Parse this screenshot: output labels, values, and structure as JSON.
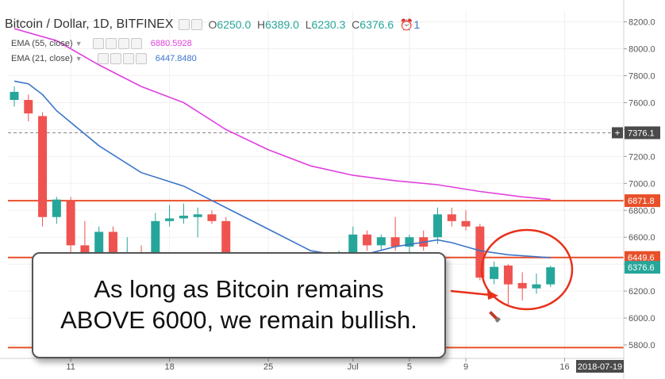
{
  "header": {
    "symbol": "Bitcoin / Dollar, 1D, BITFINEX",
    "o_label": "O",
    "o": "6250.0",
    "h_label": "H",
    "h": "6389.0",
    "l_label": "L",
    "l": "6230.3",
    "c_label": "C",
    "c": "6376.6",
    "alerts": "1"
  },
  "indicators": [
    {
      "label": "EMA (55, close)",
      "value": "6880.5928",
      "color": "#e040e0"
    },
    {
      "label": "EMA (21, close)",
      "value": "6447.8480",
      "color": "#3b74c9"
    }
  ],
  "callout": {
    "line1": "As long as Bitcoin remains",
    "line2": "ABOVE 6000, we remain bullish."
  },
  "colors": {
    "up": "#26a69a",
    "down": "#ef5350",
    "hline": "#e8502a",
    "annotation": "#e8301a"
  },
  "chart_data": {
    "type": "candlestick",
    "y_ticks": [
      5800,
      6000,
      6200,
      6400,
      6600,
      6800,
      7000,
      7200,
      7400,
      7600,
      7800,
      8000,
      8200
    ],
    "y_tick_labels": [
      "5800.0",
      "6000.0",
      "6200.0",
      "6400.0",
      "6600.0",
      "6800.0",
      "7000.0",
      "7200.0",
      "7400.0",
      "7600.0",
      "7800.0",
      "8000.0",
      "8200.0"
    ],
    "ylim": [
      5700,
      8280
    ],
    "x_ticks": [
      {
        "day": 11,
        "label": "11"
      },
      {
        "day": 18,
        "label": "18"
      },
      {
        "day": 25,
        "label": "25"
      },
      {
        "day": 31,
        "label": "Jul"
      },
      {
        "day": 35,
        "label": "5"
      },
      {
        "day": 39,
        "label": "9"
      },
      {
        "day": 46,
        "label": "16"
      }
    ],
    "cursor_date": "2018-07-19",
    "xlim": [
      7,
      48.5
    ],
    "candles": [
      {
        "d": 7,
        "o": 7620,
        "h": 7720,
        "l": 7570,
        "c": 7680
      },
      {
        "d": 8,
        "o": 7620,
        "h": 7660,
        "l": 7460,
        "c": 7520
      },
      {
        "d": 9,
        "o": 7500,
        "h": 7530,
        "l": 6680,
        "c": 6750
      },
      {
        "d": 10,
        "o": 6750,
        "h": 6900,
        "l": 6700,
        "c": 6880
      },
      {
        "d": 11,
        "o": 6870,
        "h": 6900,
        "l": 6490,
        "c": 6540
      },
      {
        "d": 12,
        "o": 6540,
        "h": 6720,
        "l": 6450,
        "c": 6480
      },
      {
        "d": 13,
        "o": 6480,
        "h": 6680,
        "l": 6450,
        "c": 6640
      },
      {
        "d": 14,
        "o": 6640,
        "h": 6680,
        "l": 6400,
        "c": 6420
      },
      {
        "d": 15,
        "o": 6420,
        "h": 6600,
        "l": 6400,
        "c": 6480
      },
      {
        "d": 16,
        "o": 6480,
        "h": 6540,
        "l": 6430,
        "c": 6450
      },
      {
        "d": 17,
        "o": 6460,
        "h": 6780,
        "l": 6430,
        "c": 6720
      },
      {
        "d": 18,
        "o": 6720,
        "h": 6840,
        "l": 6680,
        "c": 6740
      },
      {
        "d": 19,
        "o": 6740,
        "h": 6850,
        "l": 6700,
        "c": 6760
      },
      {
        "d": 20,
        "o": 6750,
        "h": 6820,
        "l": 6600,
        "c": 6770
      },
      {
        "d": 21,
        "o": 6770,
        "h": 6800,
        "l": 6700,
        "c": 6720
      },
      {
        "d": 22,
        "o": 6720,
        "h": 6750,
        "l": 6420,
        "c": 6420
      },
      {
        "d": 30,
        "o": 6420,
        "h": 6500,
        "l": 6400,
        "c": 6460
      },
      {
        "d": 31,
        "o": 6440,
        "h": 6680,
        "l": 6420,
        "c": 6620
      },
      {
        "d": 32,
        "o": 6620,
        "h": 6650,
        "l": 6500,
        "c": 6540
      },
      {
        "d": 33,
        "o": 6540,
        "h": 6620,
        "l": 6500,
        "c": 6600
      },
      {
        "d": 34,
        "o": 6600,
        "h": 6750,
        "l": 6500,
        "c": 6530
      },
      {
        "d": 35,
        "o": 6530,
        "h": 6620,
        "l": 6480,
        "c": 6600
      },
      {
        "d": 36,
        "o": 6600,
        "h": 6650,
        "l": 6500,
        "c": 6530
      },
      {
        "d": 37,
        "o": 6600,
        "h": 6820,
        "l": 6550,
        "c": 6770
      },
      {
        "d": 38,
        "o": 6770,
        "h": 6820,
        "l": 6680,
        "c": 6720
      },
      {
        "d": 39,
        "o": 6720,
        "h": 6800,
        "l": 6650,
        "c": 6680
      },
      {
        "d": 40,
        "o": 6680,
        "h": 6700,
        "l": 6280,
        "c": 6300
      },
      {
        "d": 41,
        "o": 6290,
        "h": 6420,
        "l": 6250,
        "c": 6380
      },
      {
        "d": 42,
        "o": 6390,
        "h": 6400,
        "l": 6100,
        "c": 6250
      },
      {
        "d": 43,
        "o": 6260,
        "h": 6340,
        "l": 6130,
        "c": 6220
      },
      {
        "d": 44,
        "o": 6220,
        "h": 6330,
        "l": 6180,
        "c": 6250
      },
      {
        "d": 45,
        "o": 6250,
        "h": 6389,
        "l": 6230.3,
        "c": 6376.6
      }
    ],
    "ema55": [
      [
        7,
        8150
      ],
      [
        10,
        8060
      ],
      [
        13,
        7880
      ],
      [
        16,
        7720
      ],
      [
        19,
        7600
      ],
      [
        22,
        7400
      ],
      [
        25,
        7250
      ],
      [
        28,
        7130
      ],
      [
        31,
        7060
      ],
      [
        34,
        7020
      ],
      [
        37,
        6990
      ],
      [
        40,
        6940
      ],
      [
        43,
        6900
      ],
      [
        45,
        6880.5928
      ]
    ],
    "ema21": [
      [
        7,
        7760
      ],
      [
        8,
        7740
      ],
      [
        9,
        7660
      ],
      [
        10,
        7540
      ],
      [
        13,
        7280
      ],
      [
        16,
        7080
      ],
      [
        19,
        6980
      ],
      [
        22,
        6820
      ],
      [
        25,
        6660
      ],
      [
        28,
        6500
      ],
      [
        31,
        6450
      ],
      [
        34,
        6530
      ],
      [
        37,
        6580
      ],
      [
        38,
        6560
      ],
      [
        39,
        6530
      ],
      [
        40,
        6500
      ],
      [
        42,
        6470
      ],
      [
        45,
        6447.848
      ]
    ],
    "hlines": [
      6871.8,
      6449.6,
      5780
    ],
    "price_labels": [
      {
        "value": 7376.1,
        "text": "7376.1",
        "style": "crosshair"
      },
      {
        "value": 6871.8,
        "text": "6871.8",
        "style": "red"
      },
      {
        "value": 6449.6,
        "text": "6449.6",
        "style": "red"
      },
      {
        "value": 6376.6,
        "text": "6376.6",
        "style": "green"
      }
    ]
  }
}
